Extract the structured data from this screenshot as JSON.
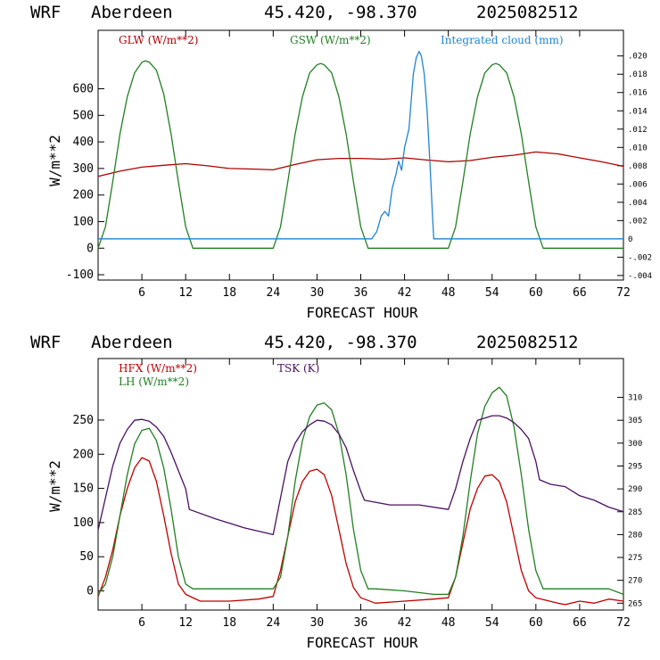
{
  "chart_data": [
    {
      "type": "line",
      "header": {
        "model": "WRF",
        "station": "Aberdeen",
        "coords": "45.420, -98.370",
        "init": "2025082512"
      },
      "xlabel": "FORECAST HOUR",
      "ylabel": "W/m**2",
      "xlim": [
        0,
        72
      ],
      "ylim": [
        -120,
        820
      ],
      "y2lim": [
        -0.0045,
        0.0228
      ],
      "x_ticks": [
        6,
        12,
        18,
        24,
        30,
        36,
        42,
        48,
        54,
        60,
        66,
        72
      ],
      "y_ticks": [
        -100,
        0,
        100,
        200,
        300,
        400,
        500,
        600
      ],
      "y_tick_labels": [
        "-100",
        "0",
        "100",
        "200",
        "300",
        "400",
        "500",
        "600"
      ],
      "y2_ticks": [
        -0.004,
        -0.002,
        0,
        0.002,
        0.004,
        0.006,
        0.008,
        0.01,
        0.012,
        0.014,
        0.016,
        0.018,
        0.02
      ],
      "y2_tick_labels": [
        "-.004",
        "-.002",
        "0",
        ".002",
        ".004",
        ".006",
        ".008",
        ".010",
        ".012",
        ".014",
        ".016",
        ".018",
        ".020"
      ],
      "series": [
        {
          "name": "GLW (W/m**2)",
          "axis": "left",
          "color": "#b00000",
          "x": [
            0,
            3,
            6,
            9,
            12,
            15,
            18,
            21,
            24,
            27,
            30,
            33,
            36,
            39,
            42,
            45,
            48,
            51,
            54,
            57,
            60,
            63,
            66,
            69,
            72
          ],
          "y": [
            270,
            290,
            305,
            312,
            318,
            310,
            300,
            298,
            295,
            315,
            333,
            338,
            338,
            335,
            340,
            332,
            325,
            330,
            342,
            350,
            362,
            355,
            340,
            325,
            308
          ]
        },
        {
          "name": "GSW (W/m**2)",
          "axis": "left",
          "color": "#208020",
          "x": [
            0,
            1,
            2,
            3,
            4,
            5,
            6,
            6.5,
            7,
            8,
            9,
            10,
            11,
            12,
            13,
            14,
            23,
            24,
            25,
            26,
            27,
            28,
            29,
            30,
            30.5,
            31,
            32,
            33,
            34,
            35,
            36,
            37,
            38,
            47,
            48,
            49,
            50,
            51,
            52,
            53,
            54,
            54.5,
            55,
            56,
            57,
            58,
            59,
            60,
            61,
            62,
            72
          ],
          "y": [
            0,
            80,
            250,
            430,
            570,
            660,
            700,
            705,
            700,
            670,
            580,
            430,
            250,
            80,
            0,
            0,
            0,
            0,
            80,
            250,
            430,
            570,
            660,
            690,
            695,
            690,
            660,
            570,
            430,
            250,
            80,
            0,
            0,
            0,
            0,
            80,
            250,
            430,
            570,
            660,
            690,
            695,
            690,
            660,
            570,
            430,
            250,
            80,
            0,
            0,
            0
          ]
        },
        {
          "name": "Integrated cloud (mm)",
          "axis": "right",
          "color": "#1f84d4",
          "x": [
            0,
            37.5,
            38.2,
            38.8,
            39.3,
            39.8,
            40.3,
            40.8,
            41.2,
            41.6,
            42.0,
            42.6,
            43.2,
            43.6,
            44.0,
            44.3,
            44.7,
            45.1,
            45.5,
            45.8,
            46.0,
            72
          ],
          "y": [
            0,
            0,
            0.0008,
            0.0025,
            0.003,
            0.0025,
            0.0055,
            0.007,
            0.0085,
            0.0075,
            0.01,
            0.012,
            0.018,
            0.0198,
            0.0205,
            0.02,
            0.018,
            0.014,
            0.008,
            0.003,
            0,
            0
          ]
        }
      ]
    },
    {
      "type": "line",
      "header": {
        "model": "WRF",
        "station": "Aberdeen",
        "coords": "45.420, -98.370",
        "init": "2025082512"
      },
      "xlabel": "FORECAST HOUR",
      "ylabel": "W/m**2",
      "xlim": [
        0,
        72
      ],
      "ylim": [
        -28,
        340
      ],
      "y2lim": [
        263.5,
        318.5
      ],
      "x_ticks": [
        6,
        12,
        18,
        24,
        30,
        36,
        42,
        48,
        54,
        60,
        66,
        72
      ],
      "y_ticks": [
        0,
        50,
        100,
        150,
        200,
        250
      ],
      "y_tick_labels": [
        "0",
        "50",
        "100",
        "150",
        "200",
        "250"
      ],
      "y2_ticks": [
        265,
        270,
        275,
        280,
        285,
        290,
        295,
        300,
        305,
        310
      ],
      "y2_tick_labels": [
        "265",
        "270",
        "275",
        "280",
        "285",
        "290",
        "295",
        "300",
        "305",
        "310"
      ],
      "series": [
        {
          "name": "HFX (W/m**2)",
          "axis": "left",
          "color": "#c00000",
          "x": [
            0,
            1,
            2,
            3,
            4,
            5,
            6,
            7,
            8,
            9,
            10,
            11,
            12,
            14,
            18,
            22,
            24,
            25,
            26,
            27,
            28,
            29,
            30,
            31,
            32,
            33,
            34,
            35,
            36,
            38,
            42,
            46,
            48,
            49,
            50,
            51,
            52,
            53,
            54,
            55,
            56,
            57,
            58,
            59,
            60,
            63,
            64,
            66,
            68,
            70,
            72
          ],
          "y": [
            -8,
            20,
            60,
            110,
            150,
            180,
            195,
            190,
            160,
            110,
            55,
            10,
            -5,
            -15,
            -15,
            -12,
            -8,
            30,
            80,
            130,
            160,
            175,
            178,
            170,
            140,
            90,
            40,
            5,
            -10,
            -18,
            -15,
            -12,
            -10,
            20,
            70,
            120,
            150,
            168,
            170,
            160,
            130,
            80,
            30,
            0,
            -10,
            -18,
            -20,
            -15,
            -18,
            -12,
            -15
          ]
        },
        {
          "name": "LH (W/m**2)",
          "axis": "left",
          "color": "#208020",
          "x": [
            0,
            1,
            2,
            3,
            4,
            5,
            6,
            7,
            8,
            9,
            10,
            11,
            12,
            13,
            24,
            25,
            26,
            27,
            28,
            29,
            30,
            31,
            32,
            33,
            34,
            35,
            36,
            37,
            38,
            42,
            46,
            48,
            49,
            50,
            51,
            52,
            53,
            54,
            55,
            56,
            57,
            58,
            59,
            60,
            61,
            62,
            66,
            70,
            72
          ],
          "y": [
            -5,
            10,
            50,
            110,
            170,
            215,
            235,
            238,
            220,
            180,
            120,
            50,
            10,
            3,
            3,
            20,
            80,
            160,
            220,
            255,
            272,
            275,
            265,
            230,
            170,
            90,
            30,
            3,
            3,
            0,
            -5,
            -5,
            20,
            80,
            160,
            230,
            270,
            290,
            298,
            285,
            240,
            170,
            90,
            30,
            3,
            3,
            3,
            3,
            -5
          ]
        },
        {
          "name": "TSK (K)",
          "axis": "right",
          "color": "#4a1060",
          "x": [
            0,
            1,
            2,
            3,
            4,
            5,
            6,
            7,
            8,
            9,
            10,
            11,
            12,
            12.5,
            16,
            20,
            24,
            25,
            26,
            27,
            28,
            29,
            30,
            31,
            32,
            33,
            34,
            35,
            36,
            36.5,
            40,
            44,
            48,
            49,
            50,
            51,
            52,
            53,
            54,
            55,
            56,
            57,
            58,
            59,
            60,
            60.5,
            62,
            64,
            66,
            68,
            70,
            72
          ],
          "y": [
            281,
            288,
            295,
            300,
            303,
            305,
            305.2,
            304.8,
            303.5,
            301.5,
            298,
            294,
            290,
            285.5,
            283.5,
            281.5,
            280,
            288,
            296,
            300,
            302.5,
            304,
            305,
            304.8,
            304,
            302,
            299,
            294,
            289.5,
            287.5,
            286.5,
            286.5,
            285.5,
            290,
            296,
            301,
            305,
            305.5,
            306,
            306,
            305.5,
            304.5,
            303,
            301,
            296,
            292,
            291,
            290.5,
            288.5,
            287.5,
            286,
            285
          ]
        }
      ]
    }
  ],
  "panels": [
    {
      "legend": [
        {
          "label": "GLW (W/m**2)",
          "color": "#b00000"
        },
        {
          "label": "GSW (W/m**2)",
          "color": "#208020"
        },
        {
          "label": "Integrated cloud (mm)",
          "color": "#1f84d4"
        }
      ]
    },
    {
      "legend": [
        {
          "label": "HFX (W/m**2)",
          "color": "#c00000"
        },
        {
          "label": "LH  (W/m**2)",
          "color": "#208020"
        },
        {
          "label": "TSK (K)",
          "color": "#4a1060"
        }
      ]
    }
  ]
}
